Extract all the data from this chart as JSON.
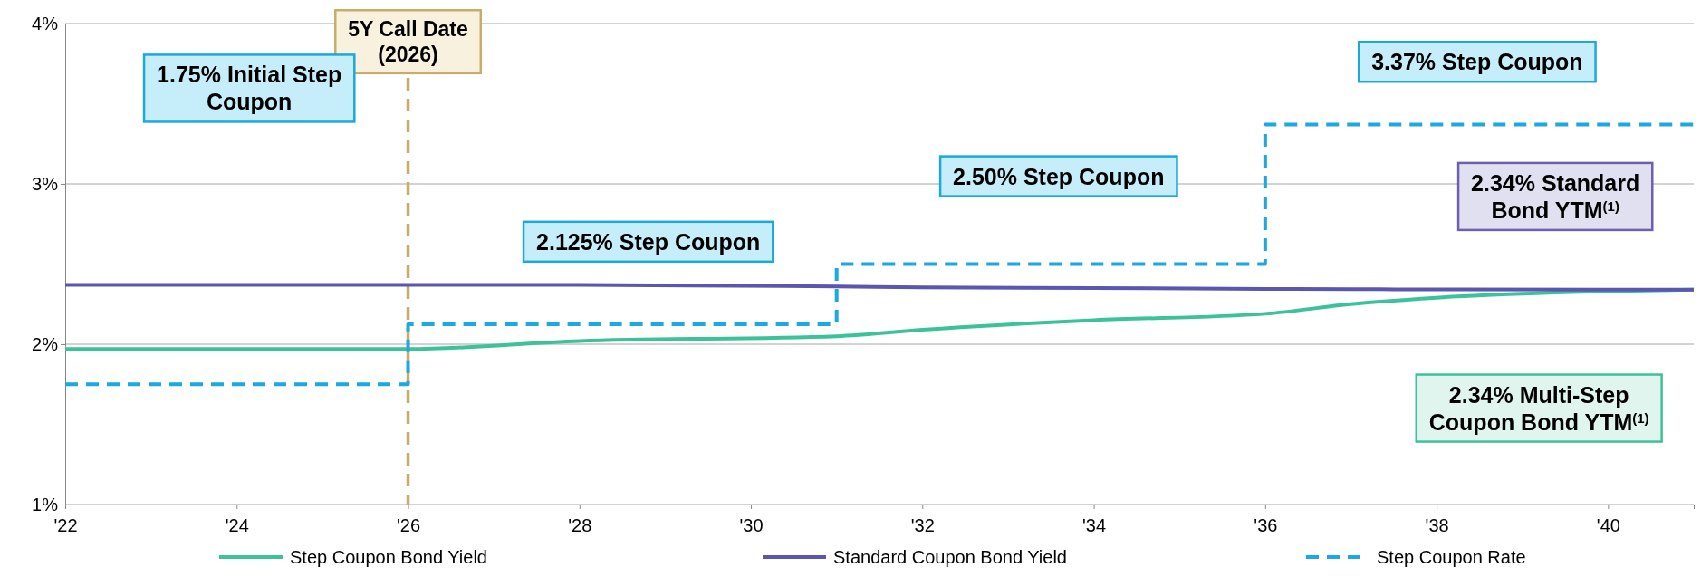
{
  "chart_data": {
    "type": "line",
    "x": [
      2022,
      2024,
      2026,
      2028,
      2031,
      2032,
      2034,
      2036,
      2037,
      2038,
      2040,
      2041
    ],
    "series": [
      {
        "name": "Step Coupon Bond Yield",
        "color": "#3cc29a",
        "values": [
          1.97,
          1.97,
          1.97,
          2.02,
          2.05,
          2.09,
          2.15,
          2.19,
          2.25,
          2.29,
          2.33,
          2.34
        ]
      },
      {
        "name": "Standard Coupon Bond Yield",
        "color": "#5b56b0",
        "values": [
          2.37,
          2.37,
          2.37,
          2.37,
          2.36,
          2.355,
          2.35,
          2.345,
          2.343,
          2.342,
          2.34,
          2.34
        ]
      },
      {
        "name": "Step Coupon Rate",
        "type": "step",
        "color": "#1ca8e0",
        "line_style": "dashed",
        "x": [
          2022,
          2026,
          2031,
          2036,
          2041
        ],
        "values": [
          1.75,
          2.125,
          2.5,
          3.37,
          3.37
        ]
      }
    ],
    "xlim": [
      2022,
      2041
    ],
    "xticks": [
      {
        "value": 2022,
        "label": "'22"
      },
      {
        "value": 2024,
        "label": "'24"
      },
      {
        "value": 2026,
        "label": "'26"
      },
      {
        "value": 2028,
        "label": "'28"
      },
      {
        "value": 2030,
        "label": "'30"
      },
      {
        "value": 2032,
        "label": "'32"
      },
      {
        "value": 2034,
        "label": "'34"
      },
      {
        "value": 2036,
        "label": "'36"
      },
      {
        "value": 2038,
        "label": "'38"
      },
      {
        "value": 2040,
        "label": "'40"
      }
    ],
    "ylim": [
      1,
      4
    ],
    "yticks": [
      {
        "value": 1,
        "label": "1%"
      },
      {
        "value": 2,
        "label": "2%"
      },
      {
        "value": 3,
        "label": "3%"
      },
      {
        "value": 4,
        "label": "4%"
      }
    ],
    "grid": "y",
    "legend": "bottom",
    "ref_lines": [
      {
        "axis": "x",
        "value": 2026,
        "label": "5Y Call Date\n(2026)",
        "color": "#c8ad6a",
        "line_style": "dashed"
      }
    ],
    "annotations": [
      "1.75% Initial Step\nCoupon",
      "2.125% Step Coupon",
      "2.50% Step Coupon",
      "3.37% Step Coupon",
      "2.34% Standard\nBond YTM$^{(1)}$",
      "2.34% Multi-Step\nCoupon Bond YTM$^{(1)}$"
    ]
  }
}
